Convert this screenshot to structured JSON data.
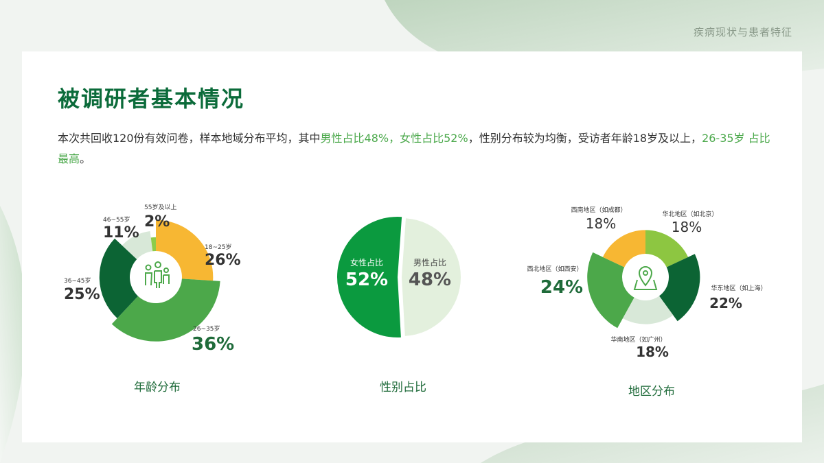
{
  "header": {
    "section_title": "疾病现状与患者特征"
  },
  "card": {
    "title": "被调研者基本情况",
    "desc_part1": "本次共回收120份有效问卷，样本地域分布平均，其中",
    "desc_hl1": "男性占比48%，女性占比52%",
    "desc_part2": "，性别分布较为均衡，受访者年龄18岁及以上，",
    "desc_hl2": "26-35岁 占比最高",
    "desc_part3": "。"
  },
  "chart_data": [
    {
      "type": "pie",
      "variant": "rose-donut",
      "title": "年龄分布",
      "center_icon": "family-icon",
      "categories": [
        "18~25岁",
        "26~35岁",
        "36~45岁",
        "46~55岁",
        "55岁及以上"
      ],
      "values": [
        26,
        36,
        25,
        11,
        2
      ],
      "value_labels": [
        "26%",
        "36%",
        "25%",
        "11%",
        "2%"
      ],
      "colors": [
        "#f7b733",
        "#4ca84a",
        "#0c6434",
        "#d8e8d8",
        "#8dcc4a"
      ]
    },
    {
      "type": "pie",
      "title": "性别占比",
      "categories": [
        "女性占比",
        "男性占比"
      ],
      "values": [
        52,
        48
      ],
      "value_labels": [
        "52%",
        "48%"
      ],
      "colors": [
        "#0b9a3f",
        "#e3f0dd"
      ]
    },
    {
      "type": "pie",
      "variant": "rose-donut",
      "title": "地区分布",
      "center_icon": "map-pin-icon",
      "categories": [
        "华北地区（如北京）",
        "华东地区（如上海）",
        "华南地区（如广州）",
        "西北地区（如西安）",
        "西南地区（如成都）"
      ],
      "values": [
        18,
        22,
        18,
        24,
        18
      ],
      "value_labels": [
        "18%",
        "22%",
        "18%",
        "24%",
        "18%"
      ],
      "colors": [
        "#8dc641",
        "#0c6434",
        "#d8e8d8",
        "#4ca84a",
        "#f7b733"
      ]
    }
  ]
}
